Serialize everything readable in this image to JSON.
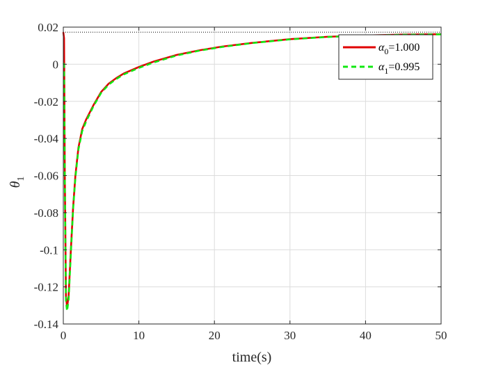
{
  "chart_data": {
    "type": "line",
    "xlabel": "time(s)",
    "ylabel_symbol": "θ",
    "ylabel_subscript": "1",
    "xlim": [
      0,
      50
    ],
    "ylim": [
      -0.14,
      0.02
    ],
    "xticks": [
      0,
      10,
      20,
      30,
      40,
      50
    ],
    "yticks": [
      0.02,
      0,
      -0.02,
      -0.04,
      -0.06,
      -0.08,
      -0.1,
      -0.12,
      -0.14
    ],
    "xtick_labels": [
      "0",
      "10",
      "20",
      "30",
      "40",
      "50"
    ],
    "ytick_labels": [
      "0.02",
      "0",
      "-0.02",
      "-0.04",
      "-0.06",
      "-0.08",
      "-0.1",
      "-0.12",
      "-0.14"
    ],
    "grid": true,
    "legend_position": "top-right",
    "reference_line": {
      "y": 0.0173,
      "style": "dotted",
      "color": "#000000"
    },
    "series": [
      {
        "name_symbol": "α",
        "name_subscript": "0",
        "name_suffix": "=1.000",
        "color": "#e00000",
        "style": "solid",
        "x": [
          0,
          0.1,
          0.2,
          0.35,
          0.5,
          0.7,
          1.0,
          1.3,
          1.6,
          2.0,
          2.5,
          3.0,
          4.0,
          5.0,
          6.0,
          7.0,
          8.0,
          10,
          12,
          15,
          18,
          21,
          25,
          30,
          35,
          40,
          45,
          50
        ],
        "y": [
          0.0173,
          0.014,
          -0.06,
          -0.125,
          -0.131,
          -0.125,
          -0.1,
          -0.077,
          -0.06,
          -0.045,
          -0.035,
          -0.03,
          -0.022,
          -0.015,
          -0.0105,
          -0.0075,
          -0.005,
          -0.0015,
          0.0015,
          0.005,
          0.0075,
          0.0095,
          0.0115,
          0.0135,
          0.0148,
          0.0155,
          0.016,
          0.0162
        ]
      },
      {
        "name_symbol": "α",
        "name_subscript": "1",
        "name_suffix": "=0.995",
        "color": "#11e811",
        "style": "dashed",
        "x": [
          0,
          0.1,
          0.2,
          0.35,
          0.5,
          0.7,
          1.0,
          1.3,
          1.6,
          2.0,
          2.5,
          3.0,
          4.0,
          5.0,
          6.0,
          7.0,
          8.0,
          10,
          12,
          15,
          18,
          21,
          25,
          30,
          35,
          40,
          45,
          50
        ],
        "y": [
          0.0005,
          0.0,
          -0.065,
          -0.128,
          -0.133,
          -0.127,
          -0.102,
          -0.078,
          -0.061,
          -0.046,
          -0.036,
          -0.031,
          -0.0225,
          -0.0155,
          -0.011,
          -0.008,
          -0.0055,
          -0.002,
          0.001,
          0.0047,
          0.0073,
          0.0093,
          0.0114,
          0.0134,
          0.0147,
          0.0154,
          0.0159,
          0.0161
        ]
      }
    ]
  }
}
